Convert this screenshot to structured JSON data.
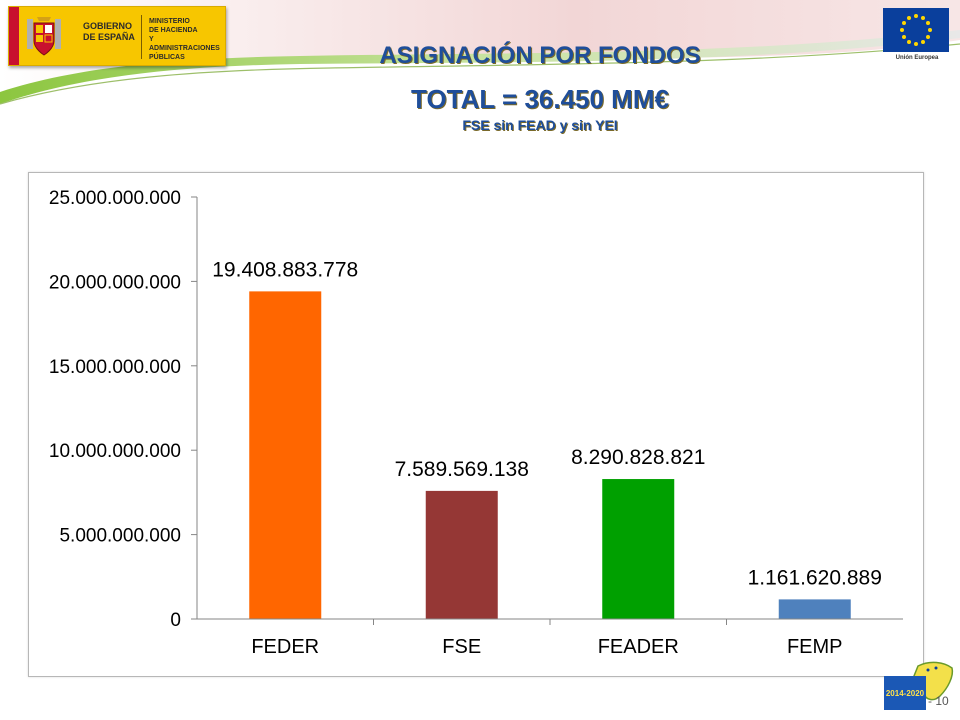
{
  "header": {
    "gov_logo": {
      "line1": "GOBIERNO",
      "line2": "DE ESPAÑA"
    },
    "ministry": {
      "line1": "MINISTERIO",
      "line2": "DE HACIENDA",
      "line3": "Y ADMINISTRACIONES",
      "line4": "PÚBLICAS"
    },
    "eu_label": "Unión Europea"
  },
  "titles": {
    "main": "ASIGNACIÓN POR FONDOS",
    "total": "TOTAL = 36.450 MM€",
    "subtitle": "FSE sin FEAD y sin YEI"
  },
  "chart_data": {
    "type": "bar",
    "title": "ASIGNACIÓN POR FONDOS",
    "xlabel": "",
    "ylabel": "",
    "categories": [
      "FEDER",
      "FSE",
      "FEADER",
      "FEMP"
    ],
    "values": [
      19408883778,
      7589569138,
      8290828821,
      1161620889
    ],
    "data_labels": [
      "19.408.883.778",
      "7.589.569.138",
      "8.290.828.821",
      "1.161.620.889"
    ],
    "colors": [
      "#ff6600",
      "#953735",
      "#00a000",
      "#4f81bd"
    ],
    "ylim": [
      0,
      25000000000
    ],
    "yticks": [
      0,
      5000000000,
      10000000000,
      15000000000,
      20000000000,
      25000000000
    ],
    "ytick_labels": [
      "0",
      "5.000.000.000",
      "10.000.000.000",
      "15.000.000.000",
      "20.000.000.000",
      "25.000.000.000"
    ],
    "grid": false,
    "legend": "none"
  },
  "footer": {
    "badge_text": "2014-2020",
    "page_number": "- 10"
  }
}
